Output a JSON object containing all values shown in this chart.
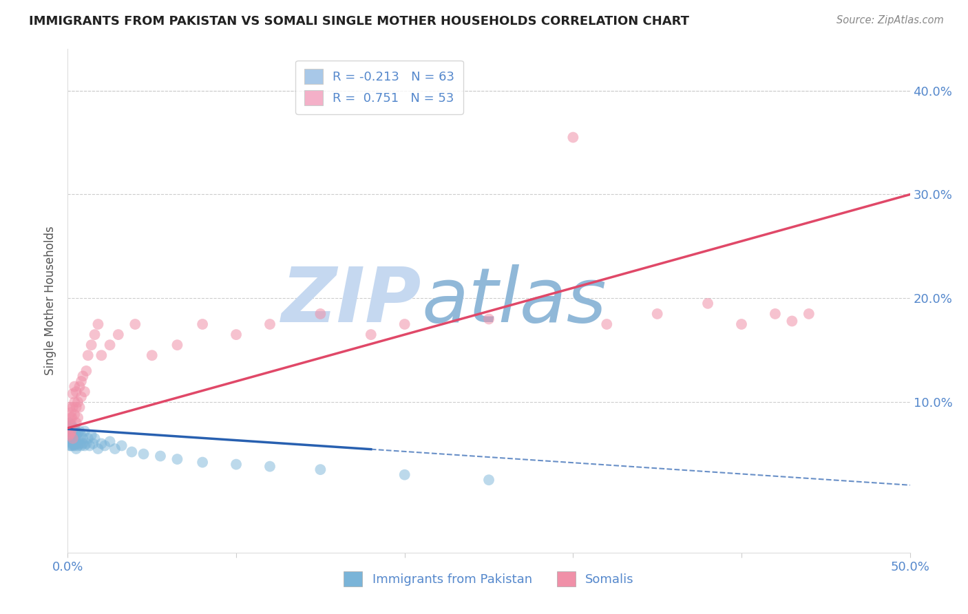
{
  "title": "IMMIGRANTS FROM PAKISTAN VS SOMALI SINGLE MOTHER HOUSEHOLDS CORRELATION CHART",
  "source": "Source: ZipAtlas.com",
  "ylabel": "Single Mother Households",
  "right_ytick_labels": [
    "10.0%",
    "20.0%",
    "30.0%",
    "40.0%"
  ],
  "right_yticks": [
    0.1,
    0.2,
    0.3,
    0.4
  ],
  "legend_entries": [
    {
      "label": "R = -0.213   N = 63",
      "color": "#a8c8e8"
    },
    {
      "label": "R =  0.751   N = 53",
      "color": "#f4b0c8"
    }
  ],
  "pakistan_color": "#7ab4d8",
  "somali_color": "#f090a8",
  "pakistan_line_color": "#2860b0",
  "somali_line_color": "#e04868",
  "watermark_zip": "ZIP",
  "watermark_atlas": "atlas",
  "watermark_color_zip": "#c5d8f0",
  "watermark_color_atlas": "#90b8d8",
  "background_color": "#ffffff",
  "grid_color": "#cccccc",
  "axis_label_color": "#5588cc",
  "title_color": "#222222",
  "source_color": "#888888",
  "xlim": [
    0.0,
    0.5
  ],
  "ylim": [
    -0.045,
    0.44
  ],
  "pk_x": [
    0.0005,
    0.0008,
    0.001,
    0.001,
    0.0012,
    0.0013,
    0.0015,
    0.0015,
    0.0018,
    0.002,
    0.002,
    0.002,
    0.0022,
    0.0025,
    0.0025,
    0.003,
    0.003,
    0.003,
    0.0032,
    0.0035,
    0.004,
    0.004,
    0.004,
    0.004,
    0.004,
    0.0045,
    0.005,
    0.005,
    0.005,
    0.005,
    0.006,
    0.006,
    0.006,
    0.007,
    0.007,
    0.008,
    0.008,
    0.009,
    0.009,
    0.01,
    0.01,
    0.011,
    0.012,
    0.013,
    0.014,
    0.015,
    0.016,
    0.018,
    0.02,
    0.022,
    0.025,
    0.028,
    0.032,
    0.038,
    0.045,
    0.055,
    0.065,
    0.08,
    0.1,
    0.12,
    0.15,
    0.2,
    0.25
  ],
  "pk_y": [
    0.075,
    0.068,
    0.08,
    0.065,
    0.072,
    0.058,
    0.07,
    0.062,
    0.075,
    0.068,
    0.058,
    0.078,
    0.065,
    0.072,
    0.06,
    0.07,
    0.058,
    0.075,
    0.065,
    0.068,
    0.06,
    0.072,
    0.065,
    0.058,
    0.075,
    0.062,
    0.068,
    0.055,
    0.072,
    0.06,
    0.065,
    0.058,
    0.07,
    0.06,
    0.072,
    0.058,
    0.068,
    0.06,
    0.065,
    0.058,
    0.072,
    0.06,
    0.065,
    0.058,
    0.068,
    0.06,
    0.065,
    0.055,
    0.06,
    0.058,
    0.062,
    0.055,
    0.058,
    0.052,
    0.05,
    0.048,
    0.045,
    0.042,
    0.04,
    0.038,
    0.035,
    0.03,
    0.025
  ],
  "so_x": [
    0.0005,
    0.0008,
    0.001,
    0.0012,
    0.0015,
    0.0018,
    0.002,
    0.002,
    0.0022,
    0.0025,
    0.003,
    0.003,
    0.003,
    0.004,
    0.004,
    0.004,
    0.005,
    0.005,
    0.005,
    0.006,
    0.006,
    0.007,
    0.007,
    0.008,
    0.008,
    0.009,
    0.01,
    0.011,
    0.012,
    0.014,
    0.016,
    0.018,
    0.02,
    0.025,
    0.03,
    0.04,
    0.05,
    0.065,
    0.08,
    0.1,
    0.12,
    0.15,
    0.18,
    0.2,
    0.25,
    0.3,
    0.32,
    0.35,
    0.38,
    0.4,
    0.42,
    0.43,
    0.44
  ],
  "so_y": [
    0.075,
    0.068,
    0.08,
    0.095,
    0.07,
    0.085,
    0.072,
    0.09,
    0.078,
    0.085,
    0.065,
    0.095,
    0.108,
    0.088,
    0.1,
    0.115,
    0.08,
    0.095,
    0.11,
    0.085,
    0.1,
    0.095,
    0.115,
    0.105,
    0.12,
    0.125,
    0.11,
    0.13,
    0.145,
    0.155,
    0.165,
    0.175,
    0.145,
    0.155,
    0.165,
    0.175,
    0.145,
    0.155,
    0.175,
    0.165,
    0.175,
    0.185,
    0.165,
    0.175,
    0.18,
    0.355,
    0.175,
    0.185,
    0.195,
    0.175,
    0.185,
    0.178,
    0.185
  ],
  "pk_line_x0": 0.0,
  "pk_line_x_solid_end": 0.18,
  "pk_line_x1": 0.5,
  "pk_line_y0": 0.074,
  "pk_line_y1": 0.02,
  "so_line_x0": 0.0,
  "so_line_x1": 0.5,
  "so_line_y0": 0.075,
  "so_line_y1": 0.3
}
